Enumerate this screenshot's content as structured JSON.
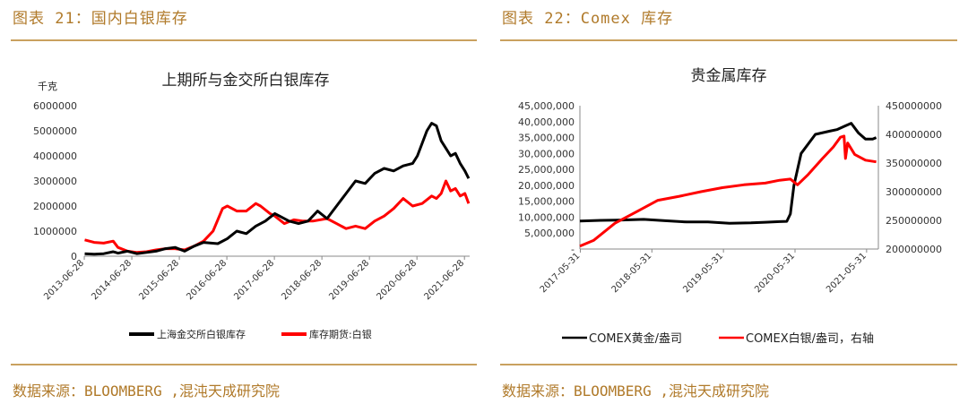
{
  "panels": {
    "left_title": "图表 21：国内白银库存",
    "right_title": "图表 22：Comex 库存",
    "source": "数据来源：BLOOMBERG ,混沌天成研究院"
  },
  "chart_data": [
    {
      "type": "line",
      "title": "上期所与金交所白银库存",
      "unit_label": "千克",
      "xlabel": "",
      "ylabel": "千克",
      "ylim": [
        0,
        6000000
      ],
      "yticks": [
        "0",
        "1000000",
        "2000000",
        "3000000",
        "4000000",
        "5000000",
        "6000000"
      ],
      "xlim": [
        2013.49,
        2021.6
      ],
      "xticks": [
        "2013-06-28",
        "2014-06-28",
        "2015-06-28",
        "2016-06-28",
        "2017-06-28",
        "2018-06-28",
        "2019-06-28",
        "2020-06-28",
        "2021-06-28"
      ],
      "series": [
        {
          "name": "上海金交所白银库存",
          "color": "#000000",
          "axis": "left",
          "x": [
            2013.5,
            2013.7,
            2013.9,
            2014.1,
            2014.2,
            2014.4,
            2014.6,
            2014.8,
            2015.0,
            2015.2,
            2015.4,
            2015.6,
            2015.8,
            2016.0,
            2016.3,
            2016.5,
            2016.7,
            2016.9,
            2017.1,
            2017.3,
            2017.5,
            2017.6,
            2017.8,
            2018.0,
            2018.2,
            2018.4,
            2018.6,
            2018.8,
            2019.0,
            2019.2,
            2019.4,
            2019.6,
            2019.8,
            2020.0,
            2020.2,
            2020.4,
            2020.5,
            2020.6,
            2020.7,
            2020.8,
            2020.9,
            2021.0,
            2021.1,
            2021.2,
            2021.3,
            2021.4,
            2021.5,
            2021.58
          ],
          "y": [
            100000,
            80000,
            100000,
            180000,
            120000,
            200000,
            100000,
            150000,
            200000,
            300000,
            350000,
            200000,
            400000,
            550000,
            500000,
            700000,
            1000000,
            900000,
            1200000,
            1400000,
            1700000,
            1600000,
            1400000,
            1300000,
            1400000,
            1800000,
            1500000,
            2000000,
            2500000,
            3000000,
            2900000,
            3300000,
            3500000,
            3400000,
            3600000,
            3700000,
            4000000,
            4500000,
            5000000,
            5300000,
            5200000,
            4600000,
            4300000,
            4000000,
            4100000,
            3700000,
            3400000,
            3100000
          ]
        },
        {
          "name": "库存期货:白银",
          "color": "#ff0000",
          "axis": "left",
          "x": [
            2013.5,
            2013.7,
            2013.9,
            2014.1,
            2014.2,
            2014.4,
            2014.6,
            2014.8,
            2015.0,
            2015.2,
            2015.4,
            2015.6,
            2015.8,
            2016.0,
            2016.2,
            2016.4,
            2016.5,
            2016.7,
            2016.9,
            2017.1,
            2017.2,
            2017.4,
            2017.5,
            2017.7,
            2017.9,
            2018.1,
            2018.3,
            2018.6,
            2018.8,
            2019.0,
            2019.2,
            2019.4,
            2019.6,
            2019.8,
            2020.0,
            2020.2,
            2020.4,
            2020.6,
            2020.8,
            2020.9,
            2021.0,
            2021.1,
            2021.2,
            2021.3,
            2021.4,
            2021.5,
            2021.58
          ],
          "y": [
            650000,
            550000,
            520000,
            600000,
            350000,
            200000,
            150000,
            180000,
            250000,
            300000,
            300000,
            250000,
            400000,
            600000,
            1000000,
            1900000,
            2000000,
            1800000,
            1800000,
            2100000,
            2000000,
            1700000,
            1600000,
            1300000,
            1450000,
            1400000,
            1400000,
            1500000,
            1300000,
            1100000,
            1200000,
            1100000,
            1400000,
            1600000,
            1900000,
            2300000,
            2000000,
            2100000,
            2400000,
            2300000,
            2500000,
            3000000,
            2600000,
            2700000,
            2400000,
            2500000,
            2100000
          ]
        }
      ]
    },
    {
      "type": "line",
      "title": "贵金属库存",
      "xlabel": "",
      "ylabel": "",
      "ylim": [
        0,
        45000000
      ],
      "yticks": [
        "-",
        "5,000,000",
        "10,000,000",
        "15,000,000",
        "20,000,000",
        "25,000,000",
        "30,000,000",
        "35,000,000",
        "40,000,000",
        "45,000,000"
      ],
      "y2lim": [
        200000000,
        450000000
      ],
      "y2ticks": [
        "200000000",
        "250000000",
        "300000000",
        "350000000",
        "400000000",
        "450000000"
      ],
      "xlim": [
        2017.41,
        2021.58
      ],
      "xticks": [
        "2017-05-31",
        "2018-05-31",
        "2019-05-31",
        "2020-05-31",
        "2021-05-31"
      ],
      "series": [
        {
          "name": "COMEX黄金/盎司",
          "color": "#000000",
          "axis": "left",
          "x": [
            2017.41,
            2017.7,
            2018.0,
            2018.3,
            2018.6,
            2018.9,
            2019.2,
            2019.5,
            2019.8,
            2020.0,
            2020.2,
            2020.3,
            2020.35,
            2020.4,
            2020.5,
            2020.7,
            2020.9,
            2021.0,
            2021.1,
            2021.2,
            2021.3,
            2021.4,
            2021.5,
            2021.55
          ],
          "y": [
            8800000,
            9000000,
            9100000,
            9300000,
            8900000,
            8500000,
            8500000,
            8100000,
            8200000,
            8400000,
            8600000,
            8700000,
            11000000,
            20000000,
            30000000,
            36000000,
            37000000,
            37500000,
            38500000,
            39500000,
            36500000,
            34500000,
            34500000,
            35000000
          ]
        },
        {
          "name": "COMEX白银/盎司，右轴",
          "color": "#ff0000",
          "axis": "right",
          "x": [
            2017.41,
            2017.6,
            2017.9,
            2018.2,
            2018.5,
            2018.8,
            2019.1,
            2019.4,
            2019.7,
            2020.0,
            2020.2,
            2020.35,
            2020.45,
            2020.6,
            2020.8,
            2020.95,
            2021.05,
            2021.1,
            2021.12,
            2021.15,
            2021.25,
            2021.4,
            2021.55
          ],
          "y": [
            205000000,
            215000000,
            245000000,
            265000000,
            285000000,
            292000000,
            300000000,
            307000000,
            312000000,
            315000000,
            320000000,
            322000000,
            312000000,
            330000000,
            358000000,
            378000000,
            395000000,
            397000000,
            358000000,
            385000000,
            365000000,
            355000000,
            352000000
          ]
        }
      ]
    }
  ]
}
